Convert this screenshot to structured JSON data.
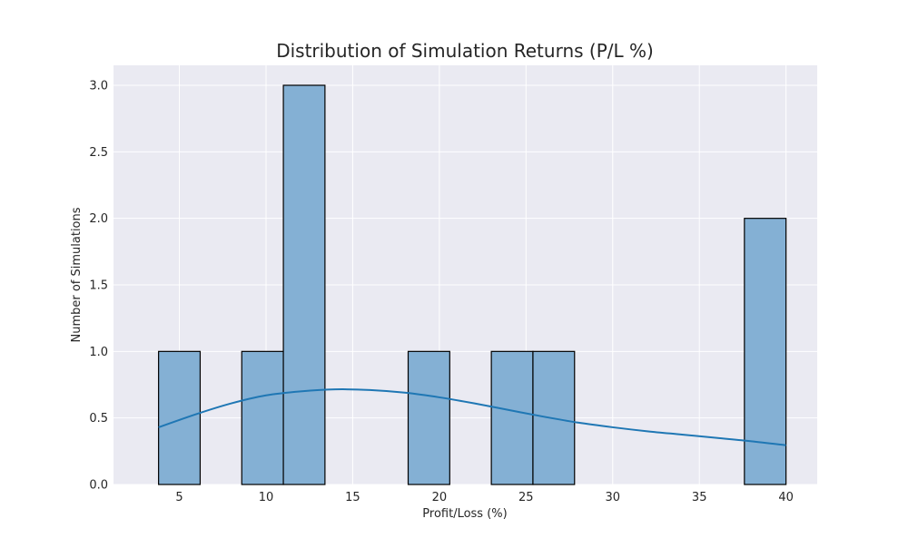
{
  "chart_data": {
    "type": "bar",
    "title": "Distribution of Simulation Returns (P/L %)",
    "xlabel": "Profit/Loss (%)",
    "ylabel": "Number of Simulations",
    "xlim": [
      1.2,
      41.8
    ],
    "ylim": [
      0,
      3.15
    ],
    "xticks": [
      5,
      10,
      15,
      20,
      25,
      30,
      35,
      40
    ],
    "yticks": [
      0.0,
      0.5,
      1.0,
      1.5,
      2.0,
      2.5,
      3.0
    ],
    "bins": [
      {
        "x0": 3.8,
        "x1": 6.2,
        "count": 1
      },
      {
        "x0": 8.6,
        "x1": 11.0,
        "count": 1
      },
      {
        "x0": 11.0,
        "x1": 13.4,
        "count": 3
      },
      {
        "x0": 18.2,
        "x1": 20.6,
        "count": 1
      },
      {
        "x0": 23.0,
        "x1": 25.4,
        "count": 1
      },
      {
        "x0": 25.4,
        "x1": 27.8,
        "count": 1
      },
      {
        "x0": 37.6,
        "x1": 40.0,
        "count": 2
      }
    ],
    "kde": {
      "x": [
        3.8,
        6,
        8,
        10,
        12,
        14,
        16,
        18,
        20,
        22,
        24,
        26,
        28,
        30,
        32,
        34,
        36,
        38,
        40
      ],
      "y": [
        0.43,
        0.53,
        0.61,
        0.67,
        0.7,
        0.715,
        0.71,
        0.69,
        0.655,
        0.61,
        0.56,
        0.51,
        0.465,
        0.43,
        0.4,
        0.375,
        0.35,
        0.325,
        0.295
      ]
    },
    "grid": true,
    "colors": {
      "background": "#eaeaf2",
      "grid": "#ffffff",
      "bar_fill": "#84b0d4",
      "bar_edge": "#000000",
      "kde_line": "#1f77b4"
    }
  }
}
